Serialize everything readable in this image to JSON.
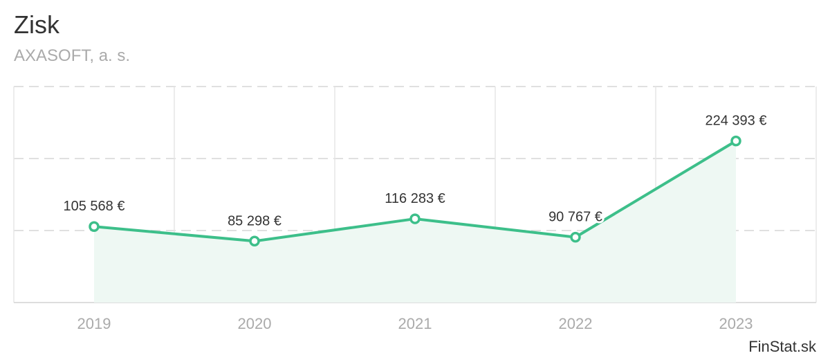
{
  "chart_data": {
    "type": "area",
    "title": "Zisk",
    "subtitle": "AXASOFT, a. s.",
    "categories": [
      "2019",
      "2020",
      "2021",
      "2022",
      "2023"
    ],
    "values": [
      105568,
      85298,
      116283,
      90767,
      224393
    ],
    "data_labels": [
      "105 568 €",
      "85 298 €",
      "116 283 €",
      "90 767 €",
      "224 393 €"
    ],
    "ylim": [
      0,
      300000
    ],
    "grid": true,
    "legend": "none",
    "colors": {
      "line": "#3dbf8a",
      "fill": "#eef8f3",
      "grid_dashed": "#e0e0e0",
      "grid_vertical": "#e6e6e6",
      "axis": "#dddddd",
      "tick_text": "#aaaaaa",
      "label_text": "#333333"
    }
  },
  "watermark": "FinStat.sk"
}
